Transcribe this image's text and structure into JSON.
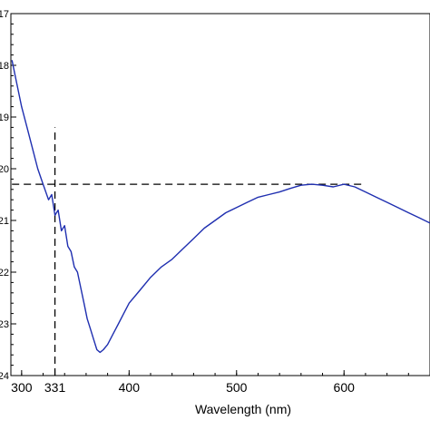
{
  "chart_data": {
    "type": "line",
    "title": "",
    "xlabel": "Wavelength (nm)",
    "ylabel": "",
    "xlim": [
      290,
      680
    ],
    "ylim": [
      -24,
      -17
    ],
    "xticks": [
      {
        "value": 300,
        "label": "300"
      },
      {
        "value": 331,
        "label": "331"
      },
      {
        "value": 400,
        "label": "400"
      },
      {
        "value": 500,
        "label": "500"
      },
      {
        "value": 600,
        "label": "600"
      }
    ],
    "yticks": [
      {
        "value": -17,
        "label": "17"
      },
      {
        "value": -18,
        "label": "18"
      },
      {
        "value": -19,
        "label": "19"
      },
      {
        "value": -20,
        "label": "20"
      },
      {
        "value": -21,
        "label": "21"
      },
      {
        "value": -22,
        "label": "22"
      },
      {
        "value": -23,
        "label": "23"
      },
      {
        "value": -24,
        "label": "24"
      }
    ],
    "grid": false,
    "legend": "none",
    "series_color": "#1f2fb0",
    "series": [
      {
        "x": [
          291,
          295,
          300,
          305,
          310,
          315,
          320,
          325,
          328,
          331,
          334,
          337,
          340,
          343,
          346,
          349,
          352,
          355,
          358,
          361,
          364,
          367,
          370,
          373,
          376,
          380,
          385,
          390,
          395,
          400,
          410,
          420,
          430,
          440,
          450,
          460,
          470,
          480,
          490,
          500,
          510,
          520,
          530,
          540,
          550,
          560,
          570,
          580,
          590,
          600,
          610,
          620,
          630,
          640,
          650,
          660,
          670,
          680
        ],
        "y": [
          -17.9,
          -18.3,
          -18.8,
          -19.2,
          -19.6,
          -20.0,
          -20.3,
          -20.6,
          -20.5,
          -20.9,
          -20.8,
          -21.2,
          -21.1,
          -21.5,
          -21.6,
          -21.9,
          -22.0,
          -22.3,
          -22.6,
          -22.9,
          -23.1,
          -23.3,
          -23.5,
          -23.55,
          -23.5,
          -23.4,
          -23.2,
          -23.0,
          -22.8,
          -22.6,
          -22.35,
          -22.1,
          -21.9,
          -21.75,
          -21.55,
          -21.35,
          -21.15,
          -21.0,
          -20.85,
          -20.75,
          -20.65,
          -20.55,
          -20.5,
          -20.45,
          -20.38,
          -20.32,
          -20.3,
          -20.32,
          -20.35,
          -20.3,
          -20.35,
          -20.45,
          -20.55,
          -20.65,
          -20.75,
          -20.85,
          -20.95,
          -21.05
        ]
      }
    ],
    "annotations": [
      {
        "type": "vline",
        "x": 331,
        "y_from": -24,
        "y_to": -19.2
      },
      {
        "type": "hline",
        "y": -20.3,
        "x_from": 291,
        "x_to": 620
      }
    ]
  }
}
